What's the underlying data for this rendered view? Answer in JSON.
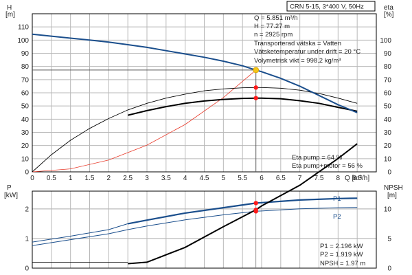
{
  "chart_data": [
    {
      "type": "line",
      "title": "CRN 5-15, 3*400 V, 50Hz",
      "xlabel": "Q [m³/h]",
      "x_axis": {
        "range": [
          0,
          9.0
        ],
        "ticks": [
          "0",
          "0.5",
          "1",
          "1.5",
          "2",
          "2.5",
          "3",
          "3.5",
          "4",
          "4.5",
          "5",
          "5.5",
          "6",
          "6.5",
          "7",
          "7.5",
          "8",
          "8.5"
        ]
      },
      "y_left": {
        "label_line1": "H",
        "label_line2": "[m]",
        "range": [
          0,
          120
        ],
        "ticks": [
          "0",
          "10",
          "20",
          "30",
          "40",
          "50",
          "60",
          "70",
          "80",
          "90",
          "100",
          "110"
        ]
      },
      "y_right": {
        "label_line1": "eta",
        "label_line2": "[%]",
        "range": [
          0,
          120
        ],
        "ticks": [
          "0",
          "10",
          "20",
          "30",
          "40",
          "50",
          "60",
          "70",
          "80",
          "90",
          "100"
        ]
      },
      "grid": true,
      "series": [
        {
          "key": "H",
          "x": [
            0,
            0.5,
            1,
            1.5,
            2,
            2.5,
            3,
            3.5,
            4,
            4.5,
            5,
            5.5,
            5.851,
            6,
            6.5,
            7,
            7.5,
            8,
            8.5
          ],
          "y": [
            104.5,
            103,
            101.5,
            100,
            98.5,
            96.5,
            94.5,
            92,
            89.5,
            87,
            84,
            80.5,
            77.27,
            76,
            71,
            65,
            58,
            51,
            45
          ]
        },
        {
          "key": "eta_pump",
          "x": [
            0,
            0.5,
            1,
            1.5,
            2,
            2.5,
            3,
            3.5,
            4,
            4.5,
            5,
            5.5,
            5.851,
            6,
            6.5,
            7,
            7.5,
            8,
            8.5
          ],
          "y": [
            0,
            13,
            24,
            33,
            40.5,
            47,
            52,
            56,
            59,
            61.5,
            63,
            63.8,
            64,
            64,
            63.5,
            62,
            59.5,
            56,
            52
          ]
        },
        {
          "key": "eta_pump_motor",
          "x": [
            2.5,
            3,
            3.5,
            4,
            4.5,
            5,
            5.5,
            5.851,
            6,
            6.5,
            7,
            7.5,
            8,
            8.5
          ],
          "y": [
            43,
            46.5,
            49.5,
            52,
            53.8,
            55,
            55.8,
            56,
            56,
            55.5,
            54,
            52,
            49,
            46
          ]
        },
        {
          "key": "system",
          "x": [
            0,
            1,
            2,
            3,
            4,
            5,
            5.851
          ],
          "y": [
            0,
            2.3,
            9,
            20.3,
            36,
            56.4,
            77.27
          ]
        }
      ],
      "operating_point": {
        "Q": 5.851,
        "H": 77.27,
        "eta_pump": 64,
        "eta_pump_motor": 56
      },
      "annotations": [
        "Q = 5.851 m³/h",
        "H = 77.27 m",
        "n = 2925 rpm",
        "Transporterad vätska = Vatten",
        "Vätsketemperatur under drift = 20 °C",
        "Volymetrisk vikt = 998.2 kg/m³"
      ],
      "eta_notes": [
        "Eta pump = 64 %",
        "Eta pump+motor = 56 %"
      ],
      "colors": {
        "H": "#1a4e8c",
        "eta_pump": "#000000",
        "eta_pump_motor": "#000000",
        "system": "#e83a2a",
        "point": "#ff1a1a",
        "op_point": "#f5c518"
      }
    },
    {
      "type": "line",
      "xlabel": "",
      "x_axis": {
        "range": [
          0,
          9.0
        ]
      },
      "y_left": {
        "label_line1": "P",
        "label_line2": "[kW]",
        "range": [
          0,
          2.6
        ],
        "ticks": [
          "0",
          "1",
          "2"
        ]
      },
      "y_right": {
        "label_line1": "NPSH",
        "label_line2": "[m]",
        "range": [
          0,
          13
        ],
        "ticks": [
          "0",
          "5",
          "10"
        ]
      },
      "grid": true,
      "series": [
        {
          "key": "P1",
          "name": "P1",
          "x": [
            0,
            1,
            2,
            2.5,
            3,
            4,
            5,
            5.851,
            6,
            7,
            8,
            8.5
          ],
          "y": [
            0.88,
            1.08,
            1.3,
            1.5,
            1.62,
            1.86,
            2.04,
            2.196,
            2.21,
            2.3,
            2.35,
            2.36
          ]
        },
        {
          "key": "P2",
          "name": "P2",
          "x": [
            0,
            1,
            2,
            2.5,
            3,
            4,
            5,
            5.851,
            6,
            7,
            8,
            8.5
          ],
          "y": [
            0.76,
            0.96,
            1.16,
            1.3,
            1.42,
            1.63,
            1.8,
            1.919,
            1.93,
            2.0,
            2.04,
            2.05
          ]
        },
        {
          "key": "NPSH",
          "x": [
            2.5,
            3,
            4,
            5,
            5.851,
            6,
            7,
            8,
            8.5
          ],
          "y": [
            0.15,
            0.2,
            0.7,
            1.4,
            1.97,
            2.1,
            2.8,
            3.7,
            4.2
          ]
        }
      ],
      "baselines": {
        "P_flat": 0.2,
        "x_end": 2.5
      },
      "operating_point": {
        "Q": 5.851,
        "P1": 2.196,
        "P2": 1.919,
        "NPSH": 1.97
      },
      "annotations": [
        "P1 = 2.196 kW",
        "P2 = 1.919 kW",
        "NPSH = 1.97 m"
      ],
      "colors": {
        "P1": "#1a4e8c",
        "P2": "#1a4e8c",
        "NPSH": "#000000",
        "point": "#ff1a1a"
      }
    }
  ]
}
